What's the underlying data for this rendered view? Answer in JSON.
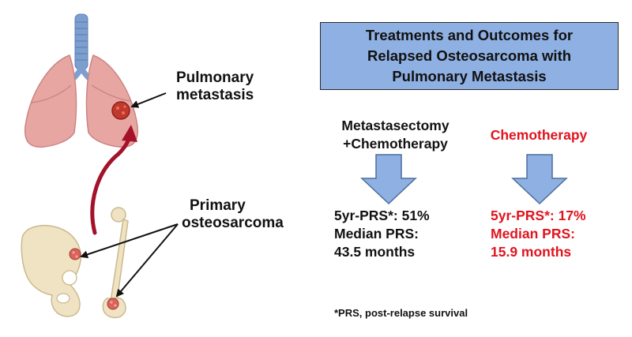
{
  "illustration": {
    "pulmonary_label_line1": "Pulmonary",
    "pulmonary_label_line2": "metastasis",
    "primary_label_line1": "Primary",
    "primary_label_line2": "osteosarcoma",
    "icons": [
      "trachea-lungs-icon",
      "lung-metastasis-nodule-icon",
      "pelvis-bone-icon",
      "femur-bone-icon",
      "tumor-nodule-icon"
    ]
  },
  "title_box": {
    "line1": "Treatments and Outcomes for",
    "line2": "Relapsed Osteosarcoma with",
    "line3": "Pulmonary Metastasis"
  },
  "columns": [
    {
      "heading_line1": "Metastasectomy",
      "heading_line2": "+Chemotherapy",
      "prs5": "5yr-PRS*: 51%",
      "median_label": "Median PRS:",
      "median_value": "43.5 months"
    },
    {
      "heading_line1": "Chemotherapy",
      "heading_line2": "",
      "prs5": "5yr-PRS*: 17%",
      "median_label": "Median PRS:",
      "median_value": "15.9 months"
    }
  ],
  "footnote": "*PRS, post-relapse survival",
  "colors": {
    "title_fill": "#8fb0e3",
    "down_arrow_fill": "#8fb0e3",
    "chemo_text": "#e0141e",
    "lung_fill": "#e8a6a3",
    "trachea_fill": "#7d9fd0",
    "bone_fill": "#efe3c4",
    "curved_arrow": "#a3122a"
  }
}
